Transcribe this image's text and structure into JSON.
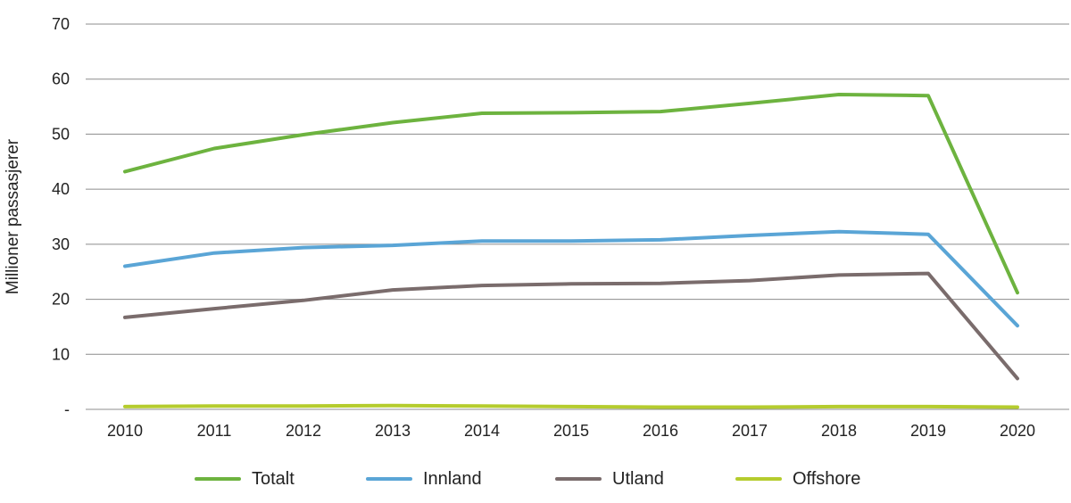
{
  "chart_data": {
    "type": "line",
    "title": "",
    "xlabel": "",
    "ylabel": "Millioner passasjerer",
    "ylim": [
      0,
      70
    ],
    "yticks": [
      {
        "value": 0,
        "label": "-"
      },
      {
        "value": 10,
        "label": "10"
      },
      {
        "value": 20,
        "label": "20"
      },
      {
        "value": 30,
        "label": "30"
      },
      {
        "value": 40,
        "label": "40"
      },
      {
        "value": 50,
        "label": "50"
      },
      {
        "value": 60,
        "label": "60"
      },
      {
        "value": 70,
        "label": "70"
      }
    ],
    "grid": true,
    "legend_position": "bottom",
    "x": [
      "2010",
      "2011",
      "2012",
      "2013",
      "2014",
      "2015",
      "2016",
      "2017",
      "2018",
      "2019",
      "2020"
    ],
    "series": [
      {
        "name": "Totalt",
        "color": "#6db33f",
        "values": [
          43.2,
          47.4,
          49.9,
          52.1,
          53.8,
          53.9,
          54.1,
          55.6,
          57.2,
          57.0,
          21.2
        ]
      },
      {
        "name": "Innland",
        "color": "#5aa5d6",
        "values": [
          26.0,
          28.4,
          29.4,
          29.8,
          30.6,
          30.6,
          30.8,
          31.6,
          32.3,
          31.8,
          15.2
        ]
      },
      {
        "name": "Utland",
        "color": "#7a6c6c",
        "values": [
          16.7,
          18.3,
          19.8,
          21.7,
          22.5,
          22.8,
          22.9,
          23.4,
          24.4,
          24.7,
          5.6
        ]
      },
      {
        "name": "Offshore",
        "color": "#b5cc2e",
        "values": [
          0.5,
          0.6,
          0.6,
          0.7,
          0.6,
          0.5,
          0.4,
          0.4,
          0.5,
          0.5,
          0.4
        ]
      }
    ]
  }
}
